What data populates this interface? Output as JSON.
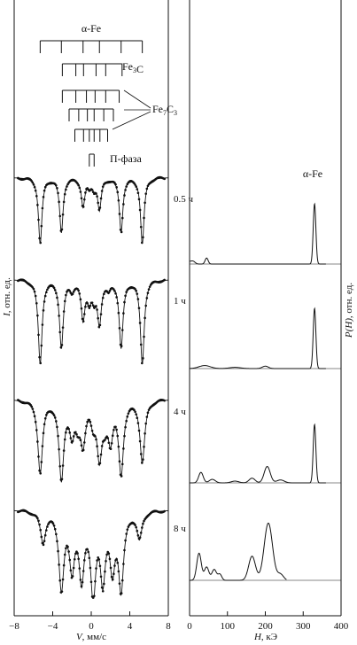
{
  "figure": {
    "left_panel_xlabel_var": "V",
    "left_panel_xlabel_unit": ", мм/с",
    "left_panel_ylabel_var": "I",
    "left_panel_ylabel_unit": ", отн. ед.",
    "right_panel_xlabel_var": "H",
    "right_panel_xlabel_unit": ", кЭ",
    "right_panel_ylabel_var": "P(H)",
    "right_panel_ylabel_unit": ", отн. ед.",
    "right_panel_title": "α-Fe"
  },
  "stick_diagram": {
    "phases": [
      {
        "name": "α-Fe",
        "lines": [
          -5.3,
          -3.1,
          -0.85,
          0.85,
          3.1,
          5.3
        ]
      },
      {
        "name_base": "Fe",
        "name_sub": "3",
        "name_tail": "C",
        "lines": [
          -3.0,
          -1.6,
          -0.8,
          0.5,
          1.5,
          3.2
        ]
      },
      {
        "name_base": "Fe",
        "name_sub": "7",
        "name_tail": "C",
        "name_sub2": "3",
        "lines": [
          -3.0,
          -1.6,
          -0.5,
          0.4,
          1.5,
          2.9
        ]
      },
      {
        "lines": [
          -2.3,
          -1.3,
          -0.4,
          0.3,
          1.3,
          2.3
        ]
      },
      {
        "lines": [
          -1.7,
          -0.8,
          -0.2,
          0.3,
          0.9,
          1.7
        ]
      },
      {
        "name": "П-фаза",
        "lines": [
          -0.2,
          0.3
        ]
      }
    ]
  },
  "chart_data": [
    {
      "type": "line",
      "panel": "Mössbauer spectra",
      "xlabel": "V, мм/с",
      "ylabel": "I, отн. ед.",
      "xlim": [
        -8,
        8
      ],
      "xticks": [
        -8,
        -4,
        0,
        4,
        8
      ],
      "series": [
        {
          "name": "0.5 ч",
          "label": "0.5 ч",
          "peaks": [
            [
              -5.3,
              1.0
            ],
            [
              -3.1,
              0.82
            ],
            [
              -0.85,
              0.42
            ],
            [
              0.85,
              0.47
            ],
            [
              3.1,
              0.82
            ],
            [
              5.3,
              1.0
            ],
            [
              -0.2,
              0.12
            ],
            [
              0.3,
              0.12
            ]
          ]
        },
        {
          "name": "1 ч",
          "label": "1 ч",
          "peaks": [
            [
              -5.3,
              1.0
            ],
            [
              -3.1,
              0.8
            ],
            [
              -0.85,
              0.45
            ],
            [
              0.85,
              0.5
            ],
            [
              3.1,
              0.8
            ],
            [
              5.3,
              1.0
            ],
            [
              -2.0,
              0.1
            ],
            [
              -0.2,
              0.2
            ],
            [
              0.3,
              0.2
            ],
            [
              1.8,
              0.1
            ]
          ]
        },
        {
          "name": "4 ч",
          "label": "4 ч",
          "peaks": [
            [
              -5.3,
              0.82
            ],
            [
              -3.1,
              0.88
            ],
            [
              -2.0,
              0.35
            ],
            [
              -0.85,
              0.45
            ],
            [
              0.85,
              0.6
            ],
            [
              2.0,
              0.4
            ],
            [
              3.1,
              0.82
            ],
            [
              5.3,
              0.7
            ],
            [
              -1.4,
              0.2
            ],
            [
              0.2,
              0.2
            ],
            [
              1.4,
              0.2
            ]
          ]
        },
        {
          "name": "8 ч",
          "label": "8 ч",
          "peaks": [
            [
              -5.0,
              0.35
            ],
            [
              -3.1,
              0.85
            ],
            [
              -2.0,
              0.6
            ],
            [
              -1.0,
              0.72
            ],
            [
              0.2,
              0.9
            ],
            [
              1.2,
              0.72
            ],
            [
              2.2,
              0.6
            ],
            [
              3.1,
              0.85
            ],
            [
              5.0,
              0.3
            ]
          ]
        }
      ]
    },
    {
      "type": "line",
      "panel": "Hyperfine field distribution",
      "title": "α-Fe",
      "xlabel": "H, кЭ",
      "ylabel": "P(H), отн. ед.",
      "xlim": [
        0,
        400
      ],
      "xticks": [
        0,
        100,
        200,
        300,
        400
      ],
      "series": [
        {
          "name": "0.5 ч",
          "components": [
            [
              0,
              8,
              0.04
            ],
            [
              10,
              5,
              0.03
            ],
            [
              45,
              4,
              0.1
            ],
            [
              330,
              3.5,
              1.0
            ]
          ]
        },
        {
          "name": "1 ч",
          "components": [
            [
              40,
              15,
              0.05
            ],
            [
              120,
              15,
              0.02
            ],
            [
              200,
              8,
              0.04
            ],
            [
              330,
              3.5,
              1.0
            ]
          ]
        },
        {
          "name": "4 ч",
          "components": [
            [
              30,
              6,
              0.18
            ],
            [
              60,
              8,
              0.06
            ],
            [
              120,
              10,
              0.03
            ],
            [
              165,
              8,
              0.08
            ],
            [
              205,
              8,
              0.28
            ],
            [
              240,
              10,
              0.05
            ],
            [
              330,
              3.5,
              1.0
            ]
          ]
        },
        {
          "name": "8 ч",
          "components": [
            [
              25,
              6,
              0.45
            ],
            [
              45,
              6,
              0.22
            ],
            [
              65,
              6,
              0.18
            ],
            [
              80,
              5,
              0.1
            ],
            [
              165,
              9,
              0.4
            ],
            [
              208,
              11,
              0.95
            ],
            [
              240,
              8,
              0.1
            ]
          ]
        }
      ]
    }
  ]
}
